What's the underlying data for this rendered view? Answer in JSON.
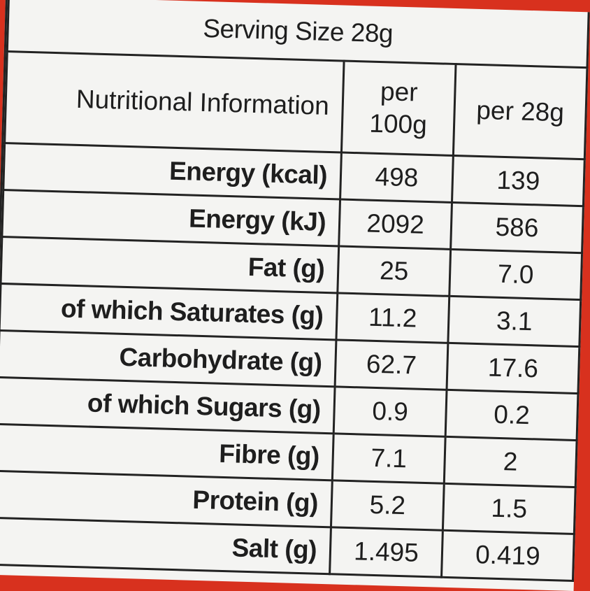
{
  "serving_size": "Serving Size 28g",
  "table": {
    "header": [
      "Nutritional Information",
      "per 100g",
      "per 28g"
    ],
    "rows": [
      [
        "Energy (kcal)",
        "498",
        "139"
      ],
      [
        "Energy (kJ)",
        "2092",
        "586"
      ],
      [
        "Fat (g)",
        "25",
        "7.0"
      ],
      [
        "of which Saturates (g)",
        "11.2",
        "3.1"
      ],
      [
        "Carbohydrate (g)",
        "62.7",
        "17.6"
      ],
      [
        "of which Sugars (g)",
        "0.9",
        "0.2"
      ],
      [
        "Fibre (g)",
        "7.1",
        "2"
      ],
      [
        "Protein (g)",
        "5.2",
        "1.5"
      ],
      [
        "Salt (g)",
        "1.495",
        "0.419"
      ]
    ]
  }
}
